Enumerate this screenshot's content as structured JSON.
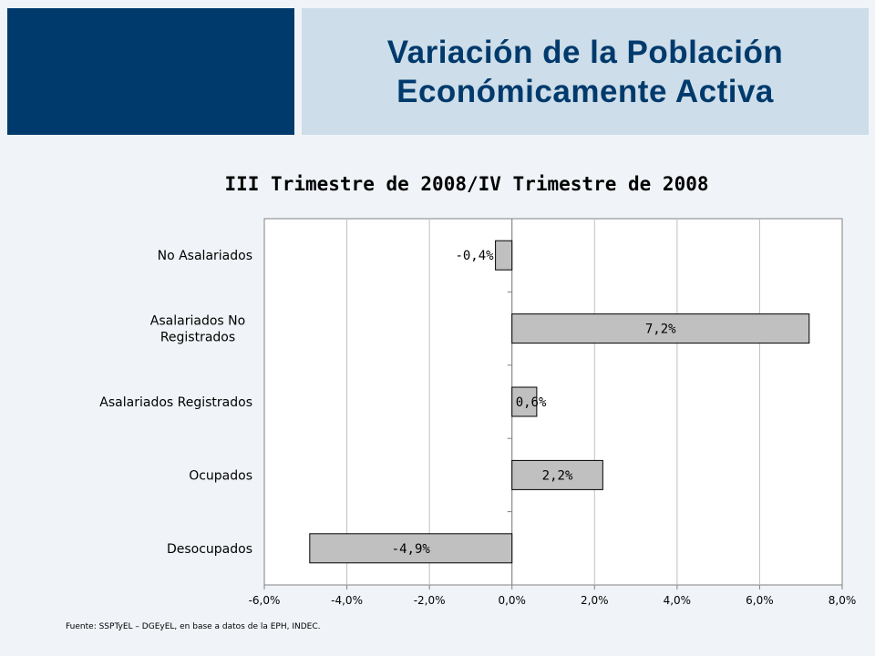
{
  "slide": {
    "title_line1": "Variación de la Población",
    "title_line2": "Económicamente Activa"
  },
  "chart_data": {
    "type": "bar",
    "orientation": "horizontal",
    "title": "III Trimestre de 2008/IV Trimestre de 2008",
    "categories": [
      [
        "No Asalariados"
      ],
      [
        "Asalariados No",
        "Registrados"
      ],
      [
        "Asalariados Registrados"
      ],
      [
        "Ocupados"
      ],
      [
        "Desocupados"
      ]
    ],
    "values": [
      -0.4,
      7.2,
      0.6,
      2.2,
      -4.9
    ],
    "data_labels": [
      "-0,4%",
      "7,2%",
      "0,6%",
      "2,2%",
      "-4,9%"
    ],
    "xlim": [
      -6,
      8
    ],
    "x_ticks": [
      -6,
      -4,
      -2,
      0,
      2,
      4,
      6,
      8
    ],
    "x_tick_labels": [
      "-6,0%",
      "-4,0%",
      "-2,0%",
      "0,0%",
      "2,0%",
      "4,0%",
      "6,0%",
      "8,0%"
    ],
    "grid": true,
    "bar_color": "#c0c0c0"
  },
  "source": "Fuente: SSPTyEL – DGEyEL, en base a datos de la EPH, INDEC."
}
